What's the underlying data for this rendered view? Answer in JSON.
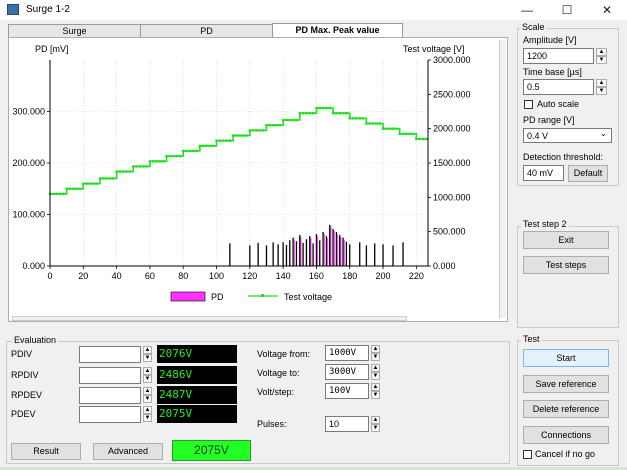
{
  "window": {
    "title": "Surge 1-2"
  },
  "tabs": [
    {
      "label": "Surge"
    },
    {
      "label": "PD"
    },
    {
      "label": "PD Max. Peak value"
    }
  ],
  "chart_data": {
    "type": "line",
    "left_axis_title": "PD [mV]",
    "right_axis_title": "Test voltage [V]",
    "x_ticks": [
      "0",
      "20",
      "40",
      "60",
      "80",
      "100",
      "120",
      "140",
      "160",
      "180",
      "200",
      "220"
    ],
    "y_left_ticks": [
      "0.000",
      "100.000",
      "200.000",
      "300.000"
    ],
    "y_right_ticks": [
      "0.000",
      "500.000",
      "1000.000",
      "1500.000",
      "2000.000",
      "2500.000",
      "3000.000"
    ],
    "xlim": [
      0,
      227
    ],
    "ylim_left": [
      0,
      400
    ],
    "ylim_right": [
      0,
      3000
    ],
    "legend": [
      "PD",
      "Test voltage"
    ],
    "legend_position": "bottom",
    "colors": {
      "pd": "#ff33ff",
      "voltage": "#22dd22"
    },
    "test_voltage_steps": [
      {
        "x0": 0,
        "x1": 10,
        "v": 1050
      },
      {
        "x0": 10,
        "x1": 20,
        "v": 1125
      },
      {
        "x0": 20,
        "x1": 30,
        "v": 1200
      },
      {
        "x0": 30,
        "x1": 40,
        "v": 1275
      },
      {
        "x0": 40,
        "x1": 50,
        "v": 1375
      },
      {
        "x0": 50,
        "x1": 60,
        "v": 1450
      },
      {
        "x0": 60,
        "x1": 70,
        "v": 1525
      },
      {
        "x0": 70,
        "x1": 80,
        "v": 1600
      },
      {
        "x0": 80,
        "x1": 90,
        "v": 1675
      },
      {
        "x0": 90,
        "x1": 100,
        "v": 1750
      },
      {
        "x0": 100,
        "x1": 110,
        "v": 1825
      },
      {
        "x0": 110,
        "x1": 120,
        "v": 1900
      },
      {
        "x0": 120,
        "x1": 130,
        "v": 1975
      },
      {
        "x0": 130,
        "x1": 140,
        "v": 2050
      },
      {
        "x0": 140,
        "x1": 150,
        "v": 2125
      },
      {
        "x0": 150,
        "x1": 160,
        "v": 2225
      },
      {
        "x0": 160,
        "x1": 170,
        "v": 2300
      },
      {
        "x0": 170,
        "x1": 180,
        "v": 2225
      },
      {
        "x0": 180,
        "x1": 190,
        "v": 2150
      },
      {
        "x0": 190,
        "x1": 200,
        "v": 2075
      },
      {
        "x0": 200,
        "x1": 210,
        "v": 2000
      },
      {
        "x0": 210,
        "x1": 220,
        "v": 1925
      },
      {
        "x0": 220,
        "x1": 227,
        "v": 1850
      }
    ],
    "pd_series": [
      [
        108,
        44
      ],
      [
        120,
        40
      ],
      [
        125,
        45
      ],
      [
        130,
        40
      ],
      [
        134,
        46
      ],
      [
        137,
        42
      ],
      [
        140,
        46
      ],
      [
        142,
        41
      ],
      [
        144,
        50
      ],
      [
        146,
        55
      ],
      [
        148,
        48
      ],
      [
        150,
        60
      ],
      [
        152,
        45
      ],
      [
        154,
        52
      ],
      [
        156,
        58
      ],
      [
        158,
        44
      ],
      [
        160,
        62
      ],
      [
        162,
        50
      ],
      [
        164,
        66
      ],
      [
        166,
        58
      ],
      [
        168,
        80
      ],
      [
        170,
        72
      ],
      [
        172,
        66
      ],
      [
        174,
        60
      ],
      [
        176,
        55
      ],
      [
        178,
        47
      ],
      [
        180,
        42
      ],
      [
        186,
        46
      ],
      [
        190,
        40
      ],
      [
        195,
        44
      ],
      [
        200,
        42
      ],
      [
        206,
        40
      ],
      [
        212,
        46
      ]
    ]
  },
  "scale": {
    "title": "Scale",
    "amplitude_label": "Amplitude [V]",
    "amplitude_value": "1200",
    "timebase_label": "Time base [µs]",
    "timebase_value": "0.5",
    "autoscale_label": "Auto scale",
    "pd_range_label": "PD range [V]",
    "pd_range_value": "0.4 V",
    "threshold_label": "Detection threshold:",
    "threshold_value": "40 mV",
    "default_label": "Default"
  },
  "teststep": {
    "title": "Test step 2",
    "exit_label": "Exit",
    "steps_label": "Test steps"
  },
  "test": {
    "title": "Test",
    "start_label": "Start",
    "save_ref_label": "Save reference",
    "delete_ref_label": "Delete reference",
    "connections_label": "Connections",
    "cancel_label": "Cancel if no go"
  },
  "evaluation": {
    "title": "Evaluation",
    "rows": [
      {
        "label": "PDIV",
        "value": "2076V"
      },
      {
        "label": "RPDIV",
        "value": "2486V"
      },
      {
        "label": "RPDEV",
        "value": "2487V"
      },
      {
        "label": "PDEV",
        "value": "2075V"
      }
    ],
    "voltage_from_label": "Voltage from:",
    "voltage_from_value": "1000V",
    "voltage_to_label": "Voltage to:",
    "voltage_to_value": "3000V",
    "volt_step_label": "Volt/step:",
    "volt_step_value": "100V",
    "pulses_label": "Pulses:",
    "pulses_value": "10",
    "result_label": "Result",
    "advanced_label": "Advanced",
    "result_value": "2075V"
  }
}
